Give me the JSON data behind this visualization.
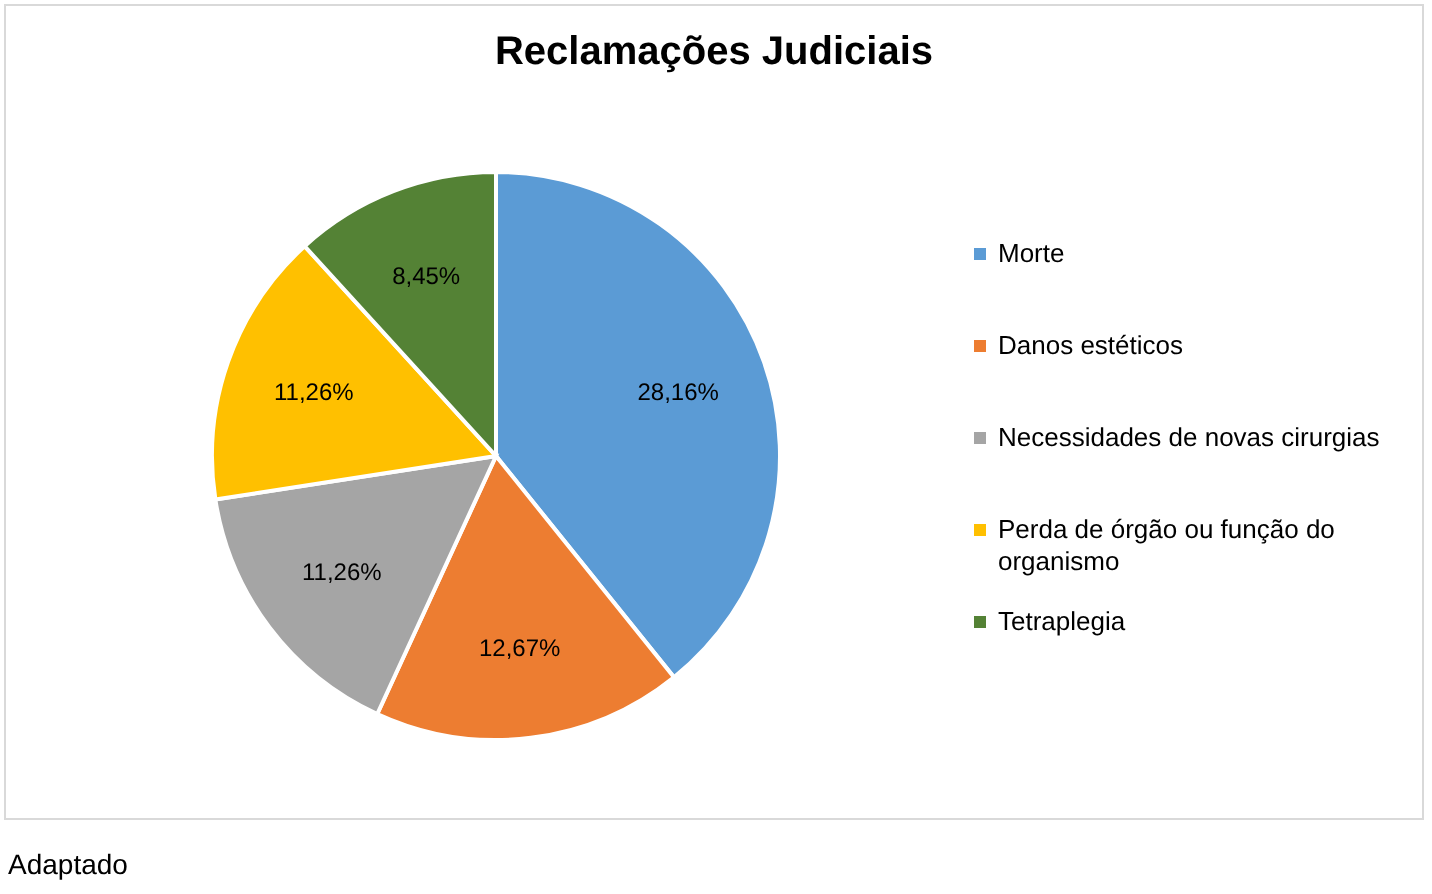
{
  "chart_data": {
    "type": "pie",
    "title": "Reclamações Judiciais",
    "categories": [
      "Morte",
      "Danos estéticos",
      "Necessidades de novas cirurgias",
      "Perda de órgão ou função do organismo",
      "Tetraplegia"
    ],
    "values": [
      28.16,
      12.67,
      11.26,
      11.26,
      8.45
    ],
    "value_labels": [
      "28,16%",
      "12,67%",
      "11,26%",
      "11,26%",
      "8,45%"
    ],
    "colors": [
      "#5b9bd5",
      "#ed7d31",
      "#a5a5a5",
      "#ffc000",
      "#548235"
    ],
    "legend": "right",
    "annotations": [
      "Adaptado"
    ]
  }
}
